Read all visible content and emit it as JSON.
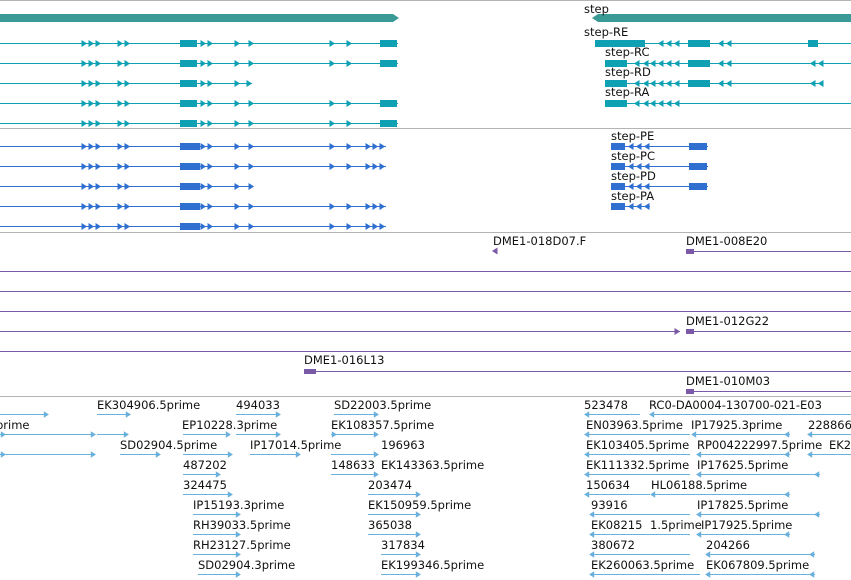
{
  "colors": {
    "gene": "#3a9a96",
    "transcript": "#0fa0b4",
    "protein": "#2e6fd0",
    "clone": "#7a5aa6",
    "est": "#6ab0dc",
    "separator": "#b4b4b4",
    "background": "#ffffff"
  },
  "tracks": {
    "gene": {
      "left_label": "",
      "right_label": "step"
    },
    "transcripts": {
      "labels": [
        "step-RE",
        "step-RC",
        "step-RD",
        "step-RA"
      ]
    },
    "proteins": {
      "labels": [
        "step-PE",
        "step-PC",
        "step-PD",
        "step-PA"
      ]
    },
    "clones": {
      "labels": [
        "DME1-018D07.F",
        "DME1-008E20",
        "DME1-012G22",
        "DME1-016L13",
        "DME1-010M03"
      ]
    },
    "ests": {
      "labels": [
        "EK304906.5prime",
        "494033",
        "SD22003.5prime",
        "523478",
        "RC0-DA0004-130700-021-E03",
        "prime",
        "EP10228.3prime",
        "EK108357.5prime",
        "EN03963.5prime",
        "IP17925.3prime",
        "228866",
        "SD02904.5prime",
        "IP17014.5prime",
        "196963",
        "EK103405.5prime",
        "RP004222997.5prime",
        "EK2",
        "487202",
        "148633",
        "EK143363.5prime",
        "EK111332.5prime",
        "IP17625.5prime",
        "324475",
        "203474",
        "150634",
        "HL06188.5prime",
        "IP15193.3prime",
        "EK150959.5prime",
        "93916",
        "IP17825.5prime",
        "RH39033.5prime",
        "365038",
        "EK08215",
        "1.5prime",
        "IP17925.5prime",
        "RH23127.5prime",
        "317834",
        "380672",
        "204266",
        "SD02904.3prime",
        "EK199346.5prime",
        "EK260063.5prime",
        "EK067809.5prime"
      ]
    }
  }
}
